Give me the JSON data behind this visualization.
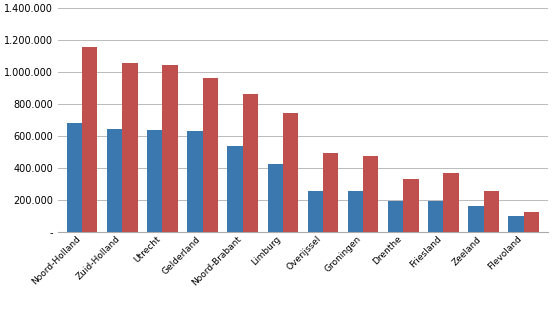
{
  "categories": [
    "Noord-Holland",
    "Zuid-Holland",
    "Utrecht",
    "Gelderland",
    "Noord-Brabant",
    "Limburg",
    "Overijssel",
    "Groningen",
    "Drenthe",
    "Friesland",
    "Zeeland",
    "Flevoland"
  ],
  "meerdaagse_zakenreizen": [
    680000,
    645000,
    638000,
    632000,
    535000,
    425000,
    255000,
    255000,
    190000,
    190000,
    158000,
    100000
  ],
  "zakelijke_overnachtingen": [
    1155000,
    1055000,
    1045000,
    965000,
    865000,
    745000,
    495000,
    472000,
    328000,
    365000,
    255000,
    125000
  ],
  "bar_color_blue": "#3B78B0",
  "bar_color_red": "#C0504D",
  "ylim": [
    0,
    1400000
  ],
  "yticks": [
    0,
    200000,
    400000,
    600000,
    800000,
    1000000,
    1200000,
    1400000
  ],
  "background_color": "#FFFFFF",
  "grid_color": "#BBBBBB",
  "bar_width": 0.38,
  "figsize": [
    5.52,
    3.31
  ],
  "dpi": 100
}
